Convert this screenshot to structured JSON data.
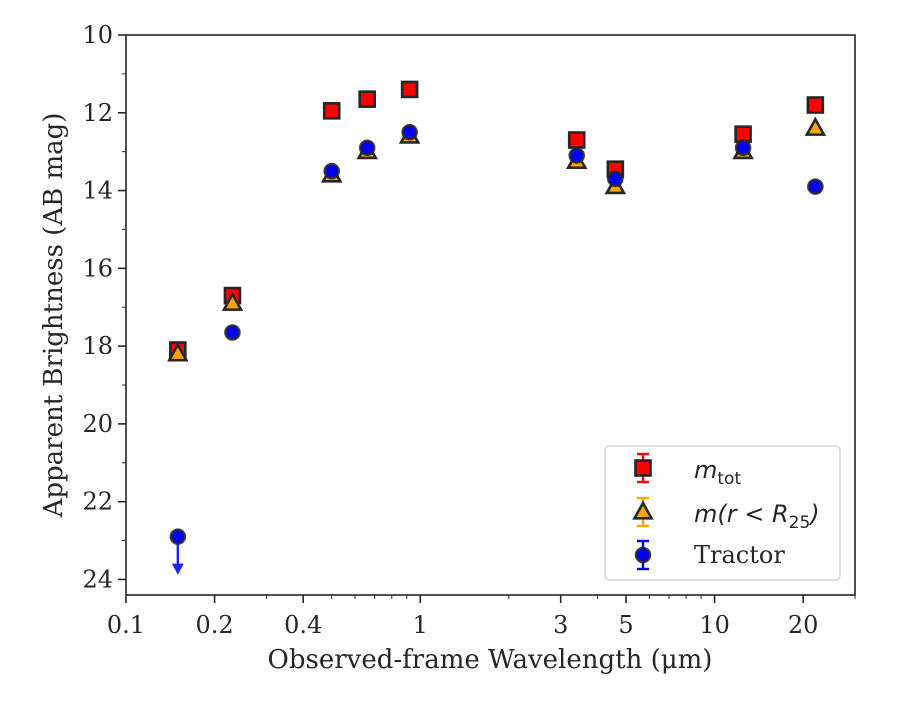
{
  "chart_data": {
    "type": "scatter",
    "xlabel": "Observed-frame Wavelength (μm)",
    "ylabel": "Apparent Brightness (AB mag)",
    "x_scale": "log",
    "xlim": [
      0.1,
      30
    ],
    "ylim": [
      24.4,
      10.0
    ],
    "y_inverted": true,
    "x_ticks": [
      0.1,
      0.2,
      0.4,
      1,
      3,
      5,
      10,
      20
    ],
    "x_tick_labels": [
      "0.1",
      "0.2",
      "0.4",
      "1",
      "3",
      "5",
      "10",
      "20"
    ],
    "y_ticks": [
      10,
      12,
      14,
      16,
      18,
      20,
      22,
      24
    ],
    "y_tick_labels": [
      "10",
      "12",
      "14",
      "16",
      "18",
      "20",
      "22",
      "24"
    ],
    "legend_position": "lower right",
    "series": [
      {
        "name": "m_tot",
        "label_main": "m",
        "label_sub": "tot",
        "marker": "square",
        "color": "#ff0000",
        "x": [
          0.15,
          0.23,
          0.5,
          0.66,
          0.92,
          3.4,
          4.6,
          12.5,
          22.0
        ],
        "y": [
          18.1,
          16.7,
          11.95,
          11.65,
          11.4,
          12.7,
          13.45,
          12.55,
          11.8
        ]
      },
      {
        "name": "m(r < R25)",
        "label_main": "m(r < R",
        "label_sub": "25",
        "label_tail": ")",
        "marker": "triangle",
        "color": "#ffa500",
        "x": [
          0.15,
          0.23,
          0.5,
          0.66,
          0.92,
          3.4,
          4.6,
          12.5,
          22.0
        ],
        "y": [
          18.2,
          16.9,
          13.6,
          13.0,
          12.6,
          13.25,
          13.9,
          13.0,
          12.4
        ]
      },
      {
        "name": "Tractor",
        "marker": "circle",
        "color": "#0000ff",
        "x": [
          0.15,
          0.23,
          0.5,
          0.66,
          0.92,
          3.4,
          4.6,
          12.5,
          22.0
        ],
        "y": [
          22.9,
          17.65,
          13.5,
          12.9,
          12.5,
          13.1,
          13.7,
          12.9,
          13.9
        ],
        "upper_limit": [
          true,
          false,
          false,
          false,
          false,
          false,
          false,
          false,
          false
        ]
      }
    ]
  }
}
